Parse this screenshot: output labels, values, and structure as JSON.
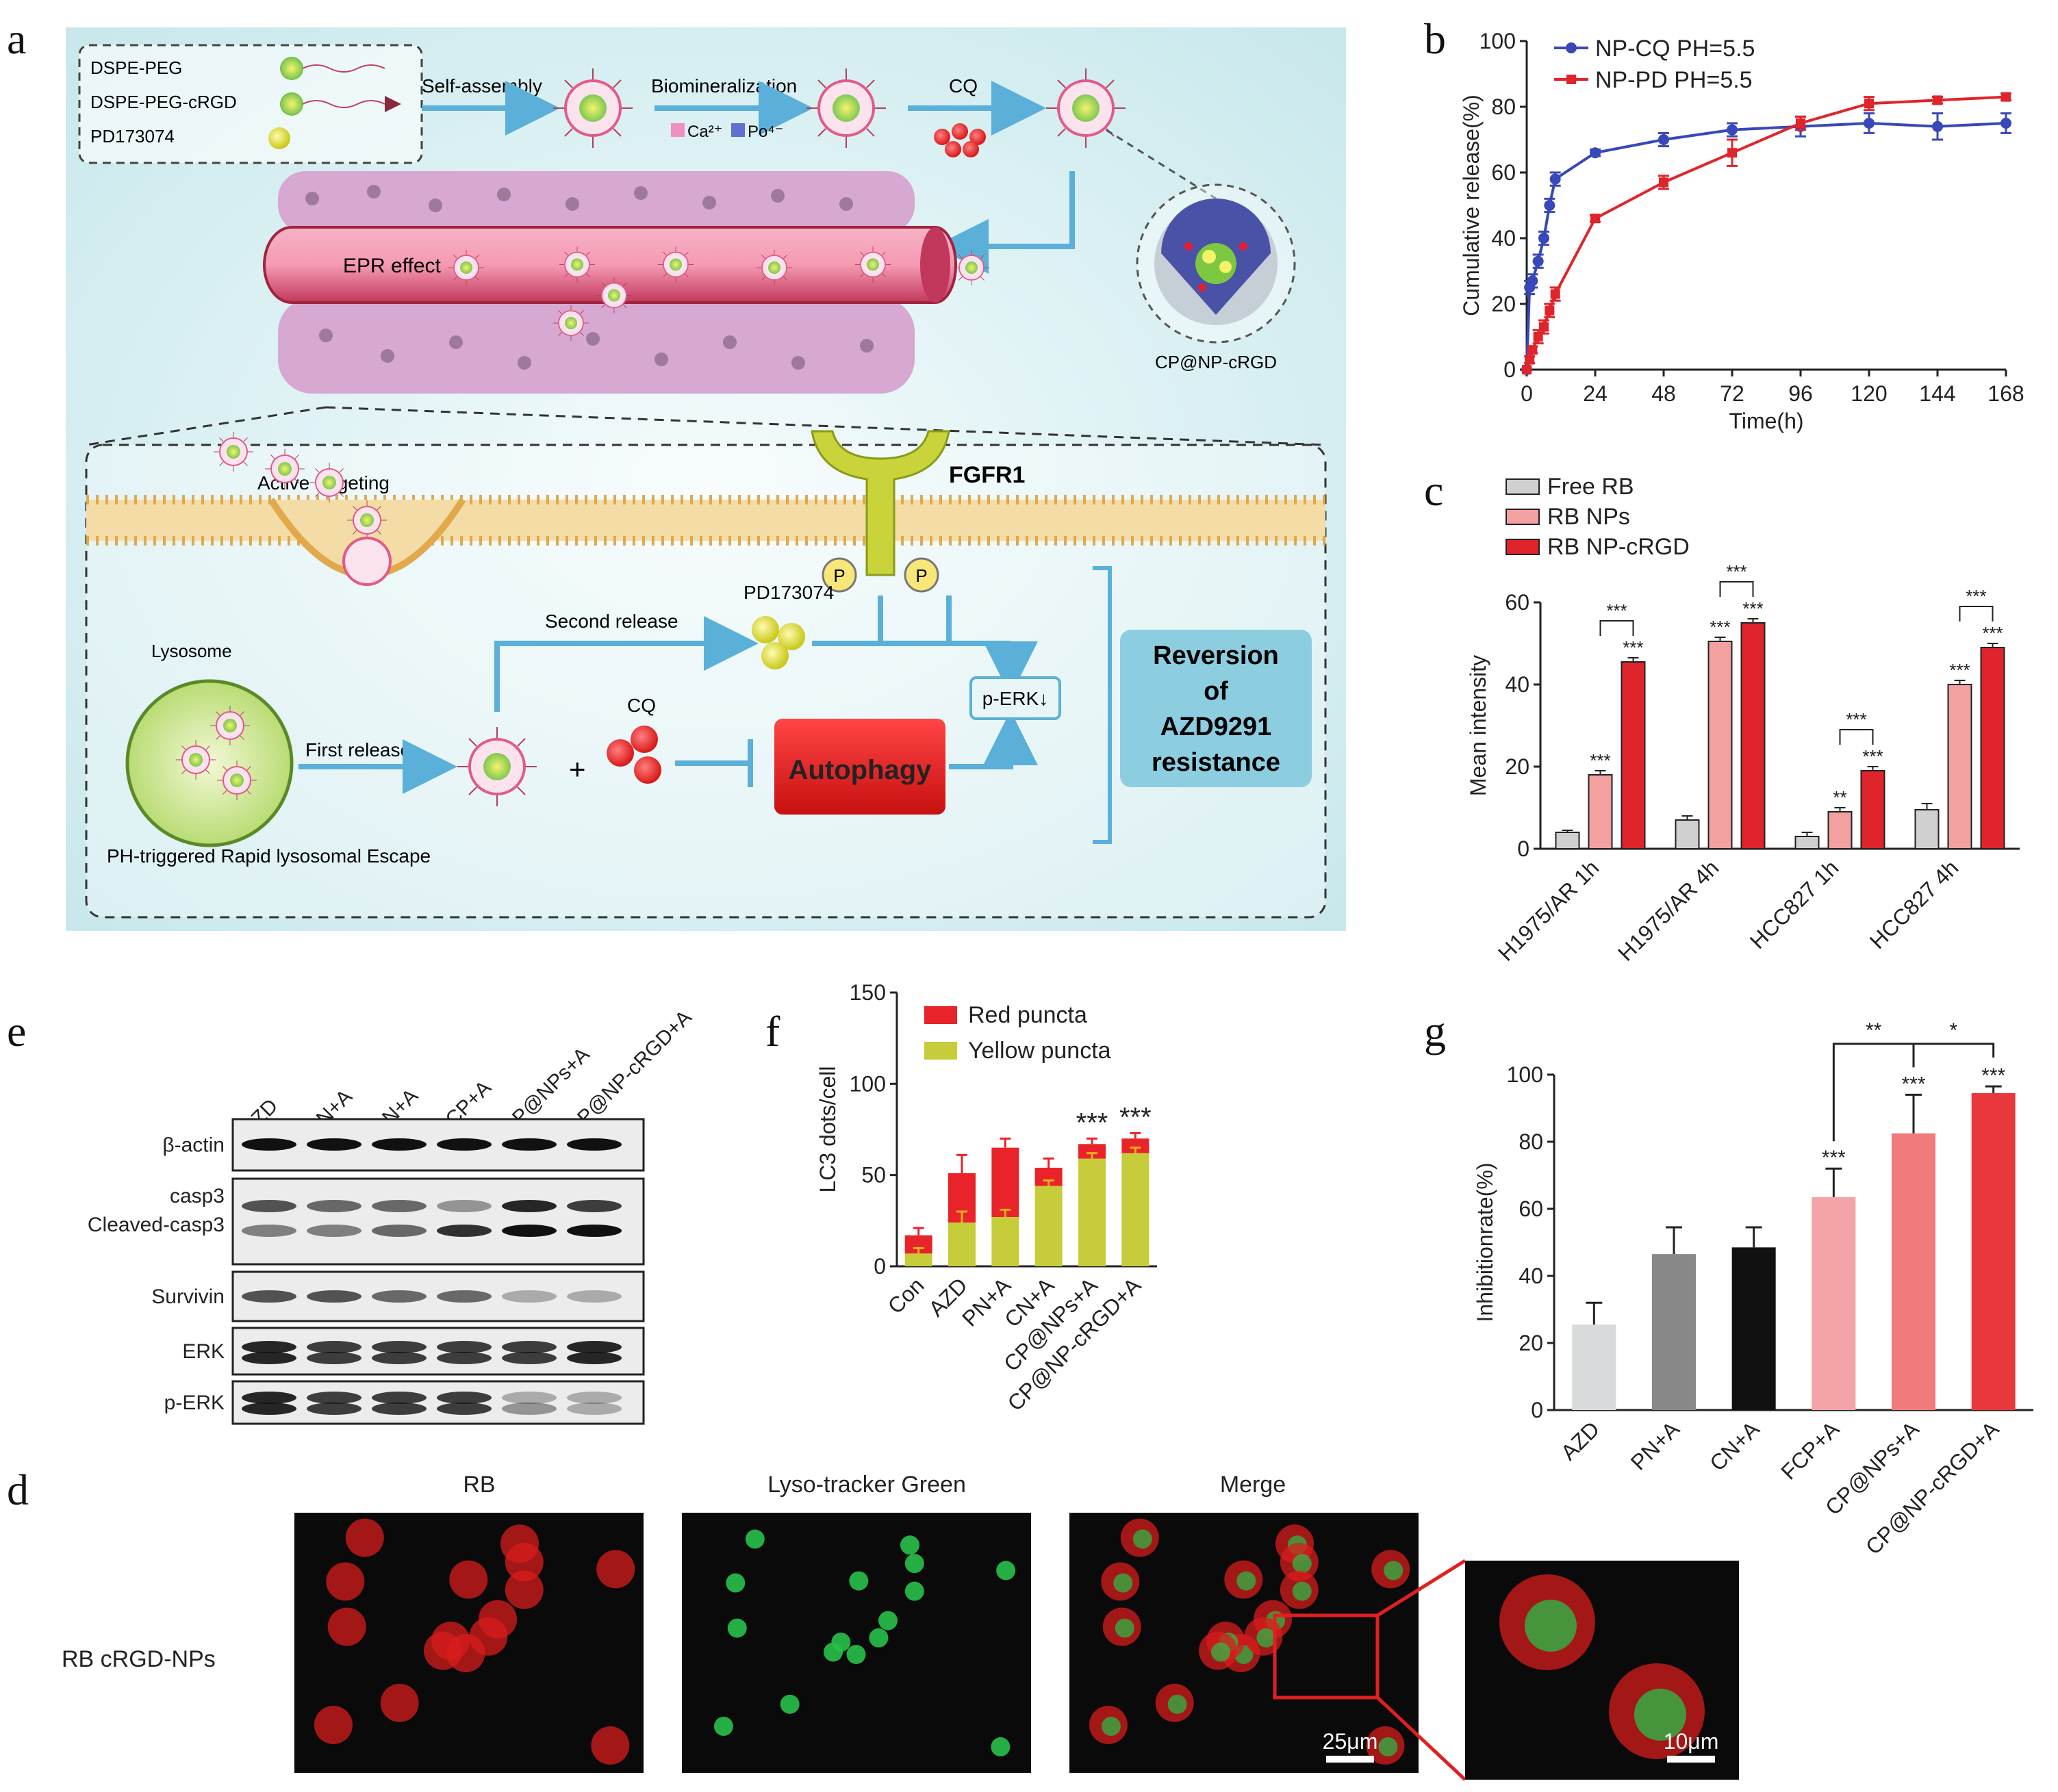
{
  "panel_labels": {
    "a": "a",
    "b": "b",
    "c": "c",
    "d": "d",
    "e": "e",
    "f": "f",
    "g": "g"
  },
  "schematic": {
    "legend": [
      "DSPE-PEG",
      "DSPE-PEG-cRGD",
      "PD173074"
    ],
    "self_assembly": "Self-assembly",
    "biomineralization": "Biomineralization",
    "ions": [
      "Ca²⁺",
      "Po⁴⁻"
    ],
    "cq_top": "CQ",
    "epr": "EPR effect",
    "nanoparticle": "CP@NP-cRGD",
    "active_targeting": "Active targeting",
    "fgfr1": "FGFR1",
    "p": "P",
    "pd173074": "PD173074",
    "second_release": "Second release",
    "lysosome": "Lysosome",
    "first_release": "First release",
    "plus": "+",
    "cq": "CQ",
    "perk": "p-ERK↓",
    "autophagy": "Autophagy",
    "reversion": [
      "Reversion",
      "of",
      "AZD9291",
      "resistance"
    ],
    "escape": "PH-triggered Rapid lysosomal Escape"
  },
  "chart_data": [
    {
      "id": "b",
      "type": "line",
      "xlabel": "Time(h)",
      "ylabel": "Cumulative release(%)",
      "xlim": [
        0,
        168
      ],
      "ylim": [
        0,
        100
      ],
      "xticks": [
        0,
        24,
        48,
        72,
        96,
        120,
        144,
        168
      ],
      "yticks": [
        0,
        20,
        40,
        60,
        80,
        100
      ],
      "legend_position": "top-left",
      "colors": [
        "#3848b8",
        "#e0242b"
      ],
      "series": [
        {
          "name": "NP-CQ PH=5.5",
          "x": [
            0,
            1,
            2,
            4,
            6,
            8,
            10,
            24,
            48,
            72,
            96,
            120,
            144,
            168
          ],
          "y": [
            0,
            25,
            27,
            33,
            40,
            50,
            58,
            66,
            70,
            73,
            74,
            75,
            74,
            75
          ],
          "err": [
            0,
            2,
            2,
            2,
            2,
            2,
            2,
            1,
            2,
            2,
            3,
            3,
            4,
            3
          ]
        },
        {
          "name": "NP-PD PH=5.5",
          "x": [
            0,
            1,
            2,
            4,
            6,
            8,
            10,
            24,
            48,
            72,
            96,
            120,
            144,
            168
          ],
          "y": [
            0,
            3,
            6,
            10,
            13,
            18,
            23,
            46,
            57,
            66,
            75,
            81,
            82,
            83
          ],
          "err": [
            0,
            1,
            1,
            2,
            2,
            2,
            2,
            1,
            2,
            4,
            2,
            2,
            1,
            1
          ]
        }
      ]
    },
    {
      "id": "c",
      "type": "bar",
      "ylabel": "Mean intensity",
      "ylim": [
        0,
        60
      ],
      "yticks": [
        0,
        20,
        40,
        60
      ],
      "categories": [
        "H1975/AR 1h",
        "H1975/AR 4h",
        "HCC827 1h",
        "HCC827 4h"
      ],
      "legend_position": "top-left",
      "colors": [
        "#d0d0d0",
        "#f2a0a0",
        "#e0242b"
      ],
      "series": [
        {
          "name": "Free RB",
          "values": [
            4,
            7,
            3,
            9.5
          ],
          "err": [
            0.5,
            1,
            1,
            1.5
          ]
        },
        {
          "name": "RB NPs",
          "values": [
            18,
            50.5,
            9,
            40
          ],
          "err": [
            1,
            1,
            1,
            1
          ]
        },
        {
          "name": "RB NP-cRGD",
          "values": [
            45.5,
            55,
            19,
            49
          ],
          "err": [
            1,
            1,
            1,
            1
          ]
        }
      ],
      "stars": [
        "***",
        "***",
        "**",
        "***"
      ],
      "brackets": [
        "***",
        "***",
        "***",
        "***"
      ]
    },
    {
      "id": "f",
      "type": "bar",
      "stacked": true,
      "ylabel": "LC3 dots/cell",
      "ylim": [
        0,
        150
      ],
      "yticks": [
        0,
        50,
        100,
        150
      ],
      "categories": [
        "Con",
        "AZD",
        "PN+A",
        "CN+A",
        "CP@NPs+A",
        "CP@NP-cRGD+A"
      ],
      "legend_position": "top-left",
      "colors": [
        "#e8242a",
        "#c6cc3a"
      ],
      "series": [
        {
          "name": "Red puncta",
          "values": [
            10,
            27,
            38,
            10,
            8,
            8
          ],
          "err": [
            4,
            10,
            5,
            5,
            3,
            3
          ]
        },
        {
          "name": "Yellow puncta",
          "values": [
            7,
            24,
            27,
            44,
            59,
            62
          ],
          "err": [
            3,
            6,
            4,
            3,
            3,
            3
          ]
        }
      ],
      "stars": [
        "",
        "",
        "",
        "",
        "***",
        "***"
      ]
    },
    {
      "id": "g",
      "type": "bar",
      "ylabel": "Inhibitionrate(%)",
      "ylim": [
        0,
        100
      ],
      "yticks": [
        0,
        20,
        40,
        60,
        80,
        100
      ],
      "categories": [
        "AZD",
        "PN+A",
        "CN+A",
        "FCP+A",
        "CP@NPs+A",
        "CP@NP-cRGD+A"
      ],
      "colors": [
        "#d9dadb",
        "#888888",
        "#111111",
        "#f4a4a6",
        "#f07a7c",
        "#e8383c"
      ],
      "series": [
        {
          "name": "",
          "values": [
            25.5,
            46.5,
            48.5,
            63.5,
            82.5,
            94.5
          ],
          "err": [
            6.5,
            8,
            6,
            8.5,
            11.5,
            2
          ]
        }
      ],
      "stars": [
        "",
        "",
        "",
        "***",
        "***",
        "***"
      ],
      "brackets": [
        {
          "from": 3,
          "to": 4,
          "label": "**"
        },
        {
          "from": 4,
          "to": 5,
          "label": "*"
        }
      ]
    }
  ],
  "blot": {
    "lanes": [
      "AZD",
      "PN+A",
      "CN+A",
      "FCP+A",
      "CP@NPs+A",
      "CP@NP-cRGD+A"
    ],
    "rows": [
      "β-actin",
      "casp3",
      "Cleaved-casp3",
      "Survivin",
      "ERK",
      "p-ERK"
    ]
  },
  "microscopy": {
    "titles": [
      "RB",
      "Lyso-tracker Green",
      "Merge"
    ],
    "row_label": "RB cRGD-NPs",
    "scale1": "25μm",
    "scale2": "10μm"
  }
}
